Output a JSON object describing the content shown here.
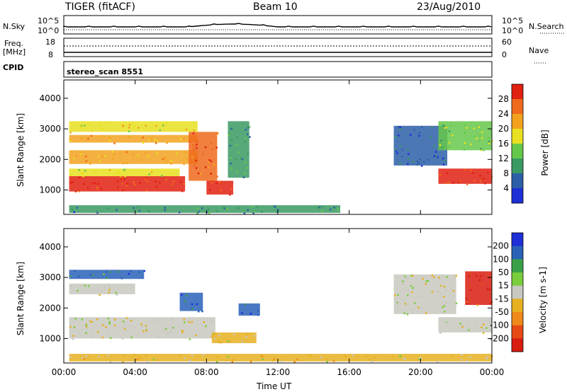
{
  "header": {
    "radar": "TIGER (fitACF)",
    "beam": "Beam 10",
    "date": "23/Aug/2010"
  },
  "top_panels": {
    "nsky_label": "N.Sky",
    "nsky_ticks": [
      "10^5",
      "10^0"
    ],
    "nsearch_label": "N.Search",
    "nsearch_ticks": [
      "10^5",
      "10^0"
    ],
    "freq_label_1": "Freq.",
    "freq_label_2": "[MHz]",
    "freq_ticks": [
      "18",
      "8"
    ],
    "nave_label": "Nave",
    "nave_ticks": [
      "60",
      "0"
    ],
    "cpid_label": "CPID",
    "cpid_value": "stereo_scan 8551"
  },
  "colors": {
    "power_scale": [
      "#1e2fd6",
      "#2d5fa8",
      "#3a9a63",
      "#66c84a",
      "#e8e020",
      "#f2a21e",
      "#ef6a1c",
      "#e02010"
    ],
    "velocity_scale": [
      "#1e2fd6",
      "#2a62b8",
      "#3aa048",
      "#7acd3c",
      "#c8c8c0",
      "#e6b020",
      "#ef8a1a",
      "#e64a14",
      "#d81c10"
    ]
  },
  "chart_data": [
    {
      "type": "heatmap",
      "title": "",
      "xlabel": "Time UT",
      "ylabel": "Slant Range [km]",
      "x_ticks": [
        "00:00",
        "04:00",
        "08:00",
        "12:00",
        "16:00",
        "20:00",
        "00:00"
      ],
      "y_ticks": [
        "1000",
        "2000",
        "3000",
        "4000"
      ],
      "xlim_hours": [
        0,
        24
      ],
      "ylim_km": [
        200,
        4600
      ],
      "colorbar": {
        "label": "Power [dB]",
        "ticks": [
          "4",
          "8",
          "12",
          "16",
          "20",
          "24",
          "28"
        ],
        "range": [
          0,
          30
        ]
      },
      "regions": [
        {
          "t": [
            0.3,
            6.8
          ],
          "r": [
            950,
            1450
          ],
          "value": 28
        },
        {
          "t": [
            0.3,
            6.5
          ],
          "r": [
            1450,
            1700
          ],
          "value": 16
        },
        {
          "t": [
            0.3,
            7.5
          ],
          "r": [
            1850,
            2300
          ],
          "value": 20
        },
        {
          "t": [
            0.3,
            7.5
          ],
          "r": [
            2550,
            2800
          ],
          "value": 22
        },
        {
          "t": [
            0.3,
            7.5
          ],
          "r": [
            2900,
            3250
          ],
          "value": 18
        },
        {
          "t": [
            7.0,
            8.6
          ],
          "r": [
            1300,
            2900
          ],
          "value": 26
        },
        {
          "t": [
            8.0,
            9.5
          ],
          "r": [
            850,
            1300
          ],
          "value": 28
        },
        {
          "t": [
            9.2,
            10.4
          ],
          "r": [
            1400,
            3250
          ],
          "value": 10
        },
        {
          "t": [
            0.3,
            15.5
          ],
          "r": [
            250,
            500
          ],
          "value": 8
        },
        {
          "t": [
            18.5,
            21.5
          ],
          "r": [
            1800,
            3100
          ],
          "value": 6
        },
        {
          "t": [
            21.0,
            24.0
          ],
          "r": [
            1200,
            1700
          ],
          "value": 28
        },
        {
          "t": [
            21.0,
            24.0
          ],
          "r": [
            2300,
            3250
          ],
          "value": 14
        }
      ]
    },
    {
      "type": "heatmap",
      "title": "",
      "xlabel": "Time UT",
      "ylabel": "Slant Range [km]",
      "x_ticks": [
        "00:00",
        "04:00",
        "08:00",
        "12:00",
        "16:00",
        "20:00",
        "00:00"
      ],
      "y_ticks": [
        "1000",
        "2000",
        "3000",
        "4000"
      ],
      "xlim_hours": [
        0,
        24
      ],
      "ylim_km": [
        200,
        4600
      ],
      "colorbar": {
        "label": "Velocity [m s-1]",
        "ticks": [
          "200",
          "100",
          "50",
          "15",
          "-15",
          "-50",
          "-100",
          "-200"
        ],
        "range": [
          -250,
          250
        ]
      },
      "regions": [
        {
          "t": [
            0.3,
            8.5
          ],
          "r": [
            1000,
            1700
          ],
          "value": 0
        },
        {
          "t": [
            0.3,
            4.0
          ],
          "r": [
            2450,
            2800
          ],
          "value": 0
        },
        {
          "t": [
            0.3,
            4.5
          ],
          "r": [
            2950,
            3250
          ],
          "value": 150
        },
        {
          "t": [
            6.5,
            7.8
          ],
          "r": [
            1900,
            2500
          ],
          "value": 180
        },
        {
          "t": [
            9.8,
            11.0
          ],
          "r": [
            1750,
            2150
          ],
          "value": 180
        },
        {
          "t": [
            8.3,
            10.8
          ],
          "r": [
            850,
            1200
          ],
          "value": -40
        },
        {
          "t": [
            0.3,
            24.0
          ],
          "r": [
            250,
            500
          ],
          "value": -30
        },
        {
          "t": [
            18.5,
            22.0
          ],
          "r": [
            1800,
            3100
          ],
          "value": 0
        },
        {
          "t": [
            21.0,
            24.0
          ],
          "r": [
            1200,
            1700
          ],
          "value": 0
        },
        {
          "t": [
            22.5,
            24.0
          ],
          "r": [
            2100,
            3200
          ],
          "value": -200
        }
      ]
    }
  ]
}
